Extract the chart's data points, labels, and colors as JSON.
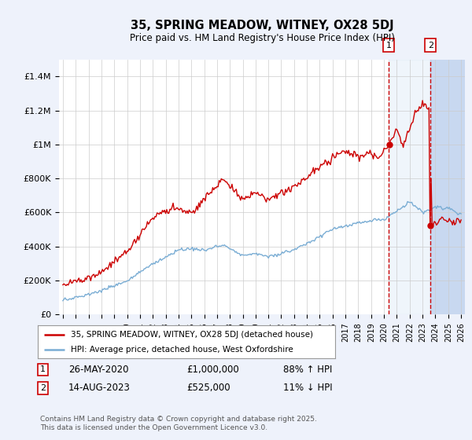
{
  "title": "35, SPRING MEADOW, WITNEY, OX28 5DJ",
  "subtitle": "Price paid vs. HM Land Registry's House Price Index (HPI)",
  "background_color": "#eef2fb",
  "plot_background": "#ffffff",
  "red_label": "35, SPRING MEADOW, WITNEY, OX28 5DJ (detached house)",
  "blue_label": "HPI: Average price, detached house, West Oxfordshire",
  "annotation1_date": "26-MAY-2020",
  "annotation1_price": "£1,000,000",
  "annotation1_hpi": "88% ↑ HPI",
  "annotation2_date": "14-AUG-2023",
  "annotation2_price": "£525,000",
  "annotation2_hpi": "11% ↓ HPI",
  "footer": "Contains HM Land Registry data © Crown copyright and database right 2025.\nThis data is licensed under the Open Government Licence v3.0.",
  "ylim": [
    0,
    1500000
  ],
  "yticks": [
    0,
    200000,
    400000,
    600000,
    800000,
    1000000,
    1200000,
    1400000
  ],
  "ytick_labels": [
    "£0",
    "£200K",
    "£400K",
    "£600K",
    "£800K",
    "£1M",
    "£1.2M",
    "£1.4M"
  ],
  "xstart_year": 1995,
  "xend_year": 2026,
  "vline1_year": 2020.38,
  "vline2_year": 2023.62,
  "vline1_price": 1000000,
  "vline2_price": 525000,
  "red_color": "#cc0000",
  "blue_color": "#7aadd4",
  "vline_color": "#cc0000",
  "grid_color": "#cccccc",
  "hatch_color": "#c8d8f0"
}
